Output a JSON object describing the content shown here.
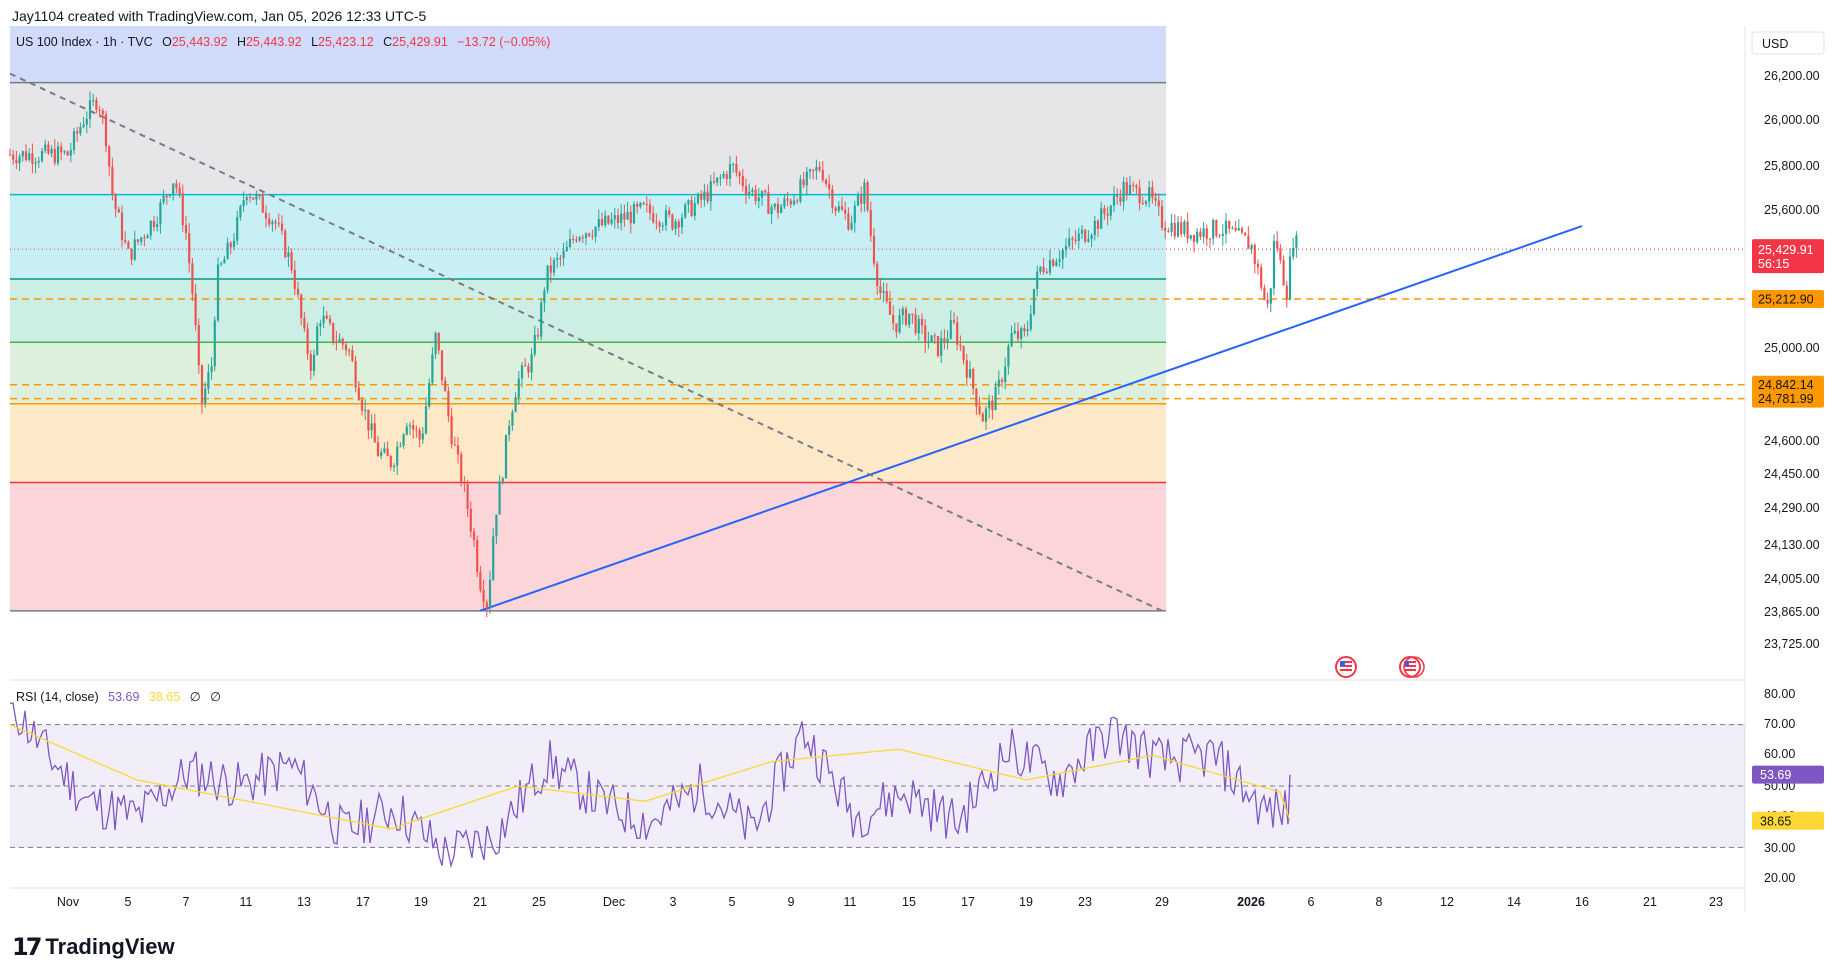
{
  "header": {
    "created_by": "Jay1104 created with TradingView.com, Jan 05, 2026 12:33 UTC-5"
  },
  "legend": {
    "symbol": "US 100 Index · 1h · TVC",
    "o_label": "O",
    "o": "25,443.92",
    "h_label": "H",
    "h": "25,443.92",
    "l_label": "L",
    "l": "25,423.12",
    "c_label": "C",
    "c": "25,429.91",
    "change": "−13.72 (−0.05%)"
  },
  "rsi_legend": {
    "label": "RSI (14, close)",
    "rsi": "53.69",
    "ma": "38.65",
    "n1": "∅",
    "n2": "∅"
  },
  "currency": "USD",
  "footer": {
    "brand": "TradingView"
  },
  "colors": {
    "up": "#26a69a",
    "down": "#ef5350",
    "trend": "#2962ff",
    "rsi": "#7e57c2",
    "rsi_ma": "#fdd835",
    "dashed": "#ff9800",
    "last": "#f23645"
  },
  "chart_data": [
    {
      "type": "candlestick",
      "title": "US 100 Index · 1h · TVC",
      "y_ticks": [
        "26,200.00",
        "26,000.00",
        "25,800.00",
        "25,600.00",
        "25,000.00",
        "24,600.00",
        "24,450.00",
        "24,290.00",
        "24,130.00",
        "24,005.00",
        "23,865.00",
        "23,725.00"
      ],
      "x_ticks": [
        "Nov",
        "5",
        "7",
        "11",
        "13",
        "17",
        "19",
        "21",
        "25",
        "Dec",
        "3",
        "5",
        "9",
        "11",
        "15",
        "17",
        "19",
        "23",
        "29",
        "2026",
        "6",
        "8",
        "12",
        "14",
        "16",
        "21",
        "23"
      ],
      "price_labels": [
        {
          "value": "25,429.91",
          "sub": "56:15",
          "kind": "last"
        },
        {
          "value": "25,212.90",
          "kind": "level"
        },
        {
          "value": "24,842.14",
          "kind": "level"
        },
        {
          "value": "24,781.99",
          "kind": "level"
        }
      ],
      "fib_levels": [
        26170,
        25670,
        25300,
        25025,
        24760,
        24410,
        23870
      ],
      "dashed_levels": [
        25212.9,
        24842.14,
        24781.99
      ],
      "trend_up": [
        {
          "x": "Nov 21",
          "y": 23870
        },
        {
          "x": "Jan 16",
          "y": 25530
        }
      ],
      "trend_down": [
        {
          "x": "Nov 1",
          "y": 26120
        },
        {
          "x": "Dec 29",
          "y": 23870
        }
      ],
      "last_price": 25429.91,
      "path": [
        [
          "Nov 1",
          25850
        ],
        [
          "Nov 2",
          26000
        ],
        [
          "Nov 3",
          26100
        ],
        [
          "Nov 3.5",
          25950
        ],
        [
          "Nov 4",
          25650
        ],
        [
          "Nov 5",
          25400
        ],
        [
          "Nov 6",
          25580
        ],
        [
          "Nov 6.6",
          25750
        ],
        [
          "Nov 7",
          25500
        ],
        [
          "Nov 7.5",
          25200
        ],
        [
          "Nov 8",
          24750
        ],
        [
          "Nov 8.8",
          24950
        ],
        [
          "Nov 9",
          25300
        ],
        [
          "Nov 10",
          25450
        ],
        [
          "Nov 10.5",
          25550
        ],
        [
          "Nov 11",
          25700
        ],
        [
          "Nov 12",
          25550
        ],
        [
          "Nov 12.6",
          25350
        ],
        [
          "Nov 13",
          25050
        ],
        [
          "Nov 13.6",
          24900
        ],
        [
          "Nov 14",
          25150
        ],
        [
          "Nov 15",
          25050
        ],
        [
          "Nov 16",
          25000
        ],
        [
          "Nov 16.6",
          24850
        ],
        [
          "Nov 17",
          24750
        ],
        [
          "Nov 17.5",
          24550
        ],
        [
          "Nov 18",
          24500
        ],
        [
          "Nov 18.5",
          24700
        ],
        [
          "Nov 19",
          24600
        ],
        [
          "Nov 19.5",
          25050
        ],
        [
          "Nov 20",
          24650
        ],
        [
          "Nov 20.5",
          24350
        ],
        [
          "Nov 21",
          24000
        ],
        [
          "Nov 21.5",
          23900
        ],
        [
          "Nov 22",
          24250
        ],
        [
          "Nov 22.5",
          24450
        ],
        [
          "Nov 23",
          24700
        ],
        [
          "Nov 23.5",
          24850
        ],
        [
          "Nov 24",
          24900
        ],
        [
          "Nov 24.5",
          24950
        ],
        [
          "Nov 25",
          25100
        ],
        [
          "Nov 25.5",
          25300
        ],
        [
          "Nov 26",
          25350
        ],
        [
          "Nov 27",
          25400
        ],
        [
          "Nov 27.5",
          25450
        ],
        [
          "Nov 28",
          25500
        ],
        [
          "Dec 1",
          25550
        ],
        [
          "Dec 2",
          25600
        ],
        [
          "Dec 3",
          25550
        ],
        [
          "Dec 4",
          25650
        ],
        [
          "Dec 5",
          25800
        ],
        [
          "Dec 6",
          25700
        ],
        [
          "Dec 7",
          25650
        ],
        [
          "Dec 8",
          25600
        ],
        [
          "Dec 9",
          25650
        ],
        [
          "Dec 10",
          25800
        ],
        [
          "Dec 10.5",
          25620
        ],
        [
          "Dec 11",
          25550
        ],
        [
          "Dec 12",
          25700
        ],
        [
          "Dec 12.5",
          25450
        ],
        [
          "Dec 13",
          25250
        ],
        [
          "Dec 14",
          25100
        ],
        [
          "Dec 15",
          25150
        ],
        [
          "Dec 15.5",
          25050
        ],
        [
          "Dec 16",
          25000
        ],
        [
          "Dec 16.5",
          25100
        ],
        [
          "Dec 17",
          24900
        ],
        [
          "Dec 17.5",
          24700
        ],
        [
          "Dec 18",
          24800
        ],
        [
          "Dec 18.5",
          25050
        ],
        [
          "Dec 19",
          25050
        ],
        [
          "Dec 19.5",
          25250
        ],
        [
          "Dec 20",
          25350
        ],
        [
          "Dec 21",
          25400
        ],
        [
          "Dec 22",
          25450
        ],
        [
          "Dec 23",
          25500
        ],
        [
          "Dec 24",
          25550
        ],
        [
          "Dec 25",
          25620
        ],
        [
          "Dec 26",
          25700
        ],
        [
          "Dec 27",
          25680
        ],
        [
          "Dec 28",
          25660
        ],
        [
          "Dec 29",
          25550
        ],
        [
          "Dec 30",
          25500
        ],
        [
          "Dec 31",
          25520
        ],
        [
          "Jan 1",
          25450
        ],
        [
          "Jan 1.5",
          25350
        ],
        [
          "Jan 2",
          25250
        ],
        [
          "Jan 2.3",
          25150
        ],
        [
          "Jan 2.6",
          25250
        ],
        [
          "Jan 3",
          25500
        ],
        [
          "Jan 3.5",
          25350
        ],
        [
          "Jan 4",
          25250
        ],
        [
          "Jan 4.5",
          25480
        ],
        [
          "Jan 5",
          25430
        ]
      ],
      "rsi": {
        "y_ticks": [
          "80.00",
          "70.00",
          "60.00",
          "50.00",
          "40.00",
          "30.00",
          "20.00"
        ],
        "bands": [
          70,
          50,
          30
        ],
        "last_rsi": 53.69,
        "last_ma": 38.65,
        "values": [
          [
            0,
            77
          ],
          [
            0.03,
            60
          ],
          [
            0.06,
            45
          ],
          [
            0.1,
            40
          ],
          [
            0.14,
            55
          ],
          [
            0.18,
            50
          ],
          [
            0.22,
            57
          ],
          [
            0.26,
            35
          ],
          [
            0.3,
            43
          ],
          [
            0.34,
            28
          ],
          [
            0.38,
            34
          ],
          [
            0.42,
            58
          ],
          [
            0.46,
            45
          ],
          [
            0.5,
            38
          ],
          [
            0.54,
            50
          ],
          [
            0.58,
            35
          ],
          [
            0.62,
            68
          ],
          [
            0.66,
            40
          ],
          [
            0.7,
            48
          ],
          [
            0.74,
            38
          ],
          [
            0.78,
            62
          ],
          [
            0.82,
            52
          ],
          [
            0.86,
            68
          ],
          [
            0.9,
            58
          ],
          [
            0.94,
            60
          ],
          [
            0.98,
            42
          ]
        ],
        "ma_values": [
          [
            0,
            70
          ],
          [
            0.1,
            52
          ],
          [
            0.2,
            44
          ],
          [
            0.3,
            36
          ],
          [
            0.4,
            50
          ],
          [
            0.5,
            45
          ],
          [
            0.6,
            58
          ],
          [
            0.7,
            62
          ],
          [
            0.8,
            52
          ],
          [
            0.9,
            60
          ],
          [
            1,
            48
          ]
        ]
      }
    }
  ]
}
